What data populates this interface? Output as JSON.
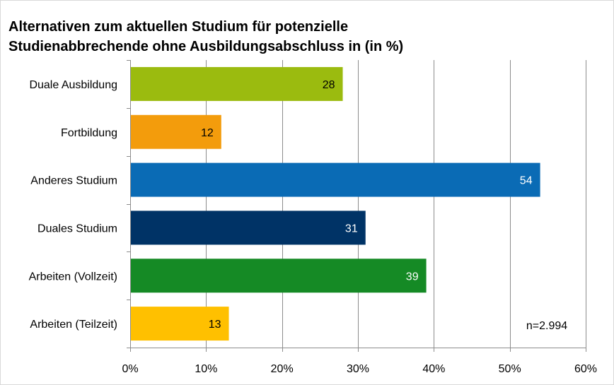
{
  "chart_data": {
    "type": "bar",
    "orientation": "horizontal",
    "title_lines": [
      "Alternativen zum aktuellen Studium für potenzielle",
      "Studienabbrechende ohne Ausbildungsabschluss in (in %)"
    ],
    "categories": [
      "Duale Ausbildung",
      "Fortbildung",
      "Anderes Studium",
      "Duales Studium",
      "Arbeiten (Vollzeit)",
      "Arbeiten (Teilzeit)"
    ],
    "values": [
      28,
      12,
      54,
      31,
      39,
      13
    ],
    "bar_colors": [
      "#9bbb0f",
      "#f39c0c",
      "#0a6bb5",
      "#003366",
      "#158a25",
      "#ffc000"
    ],
    "label_colors": [
      "#000000",
      "#000000",
      "#ffffff",
      "#ffffff",
      "#ffffff",
      "#000000"
    ],
    "xlim": [
      0,
      60
    ],
    "x_ticks": [
      0,
      10,
      20,
      30,
      40,
      50,
      60
    ],
    "x_tick_labels": [
      "0%",
      "10%",
      "20%",
      "30%",
      "40%",
      "50%",
      "60%"
    ],
    "grid": true,
    "legend": "none",
    "annotation": "n=2.994"
  }
}
